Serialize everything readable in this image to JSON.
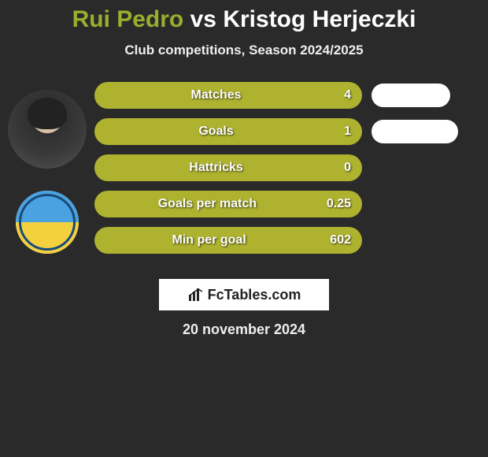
{
  "title": {
    "player1": "Rui Pedro",
    "vs": "vs",
    "player2": "Kristog Herjeczki",
    "player1_color": "#9aae2e",
    "player2_color": "#ffffff"
  },
  "subtitle": "Club competitions, Season 2024/2025",
  "player1_bar_color": "#aeb22f",
  "player2_bar_color": "#ffffff",
  "background_color": "#2a2a2a",
  "stats": [
    {
      "label": "Matches",
      "p1_value": "4",
      "p1_width": 340,
      "p2_width": 100
    },
    {
      "label": "Goals",
      "p1_value": "1",
      "p1_width": 340,
      "p2_width": 110
    },
    {
      "label": "Hattricks",
      "p1_value": "0",
      "p1_width": 340,
      "p2_width": 0
    },
    {
      "label": "Goals per match",
      "p1_value": "0.25",
      "p1_width": 340,
      "p2_width": 0
    },
    {
      "label": "Min per goal",
      "p1_value": "602",
      "p1_width": 340,
      "p2_width": 0
    }
  ],
  "brand": "FcTables.com",
  "date": "20 november 2024",
  "avatar_bg": "#3b3b3b",
  "club_colors": {
    "top": "#4aa3e0",
    "bottom": "#f4d03f",
    "ring": "#1a4a7a"
  }
}
